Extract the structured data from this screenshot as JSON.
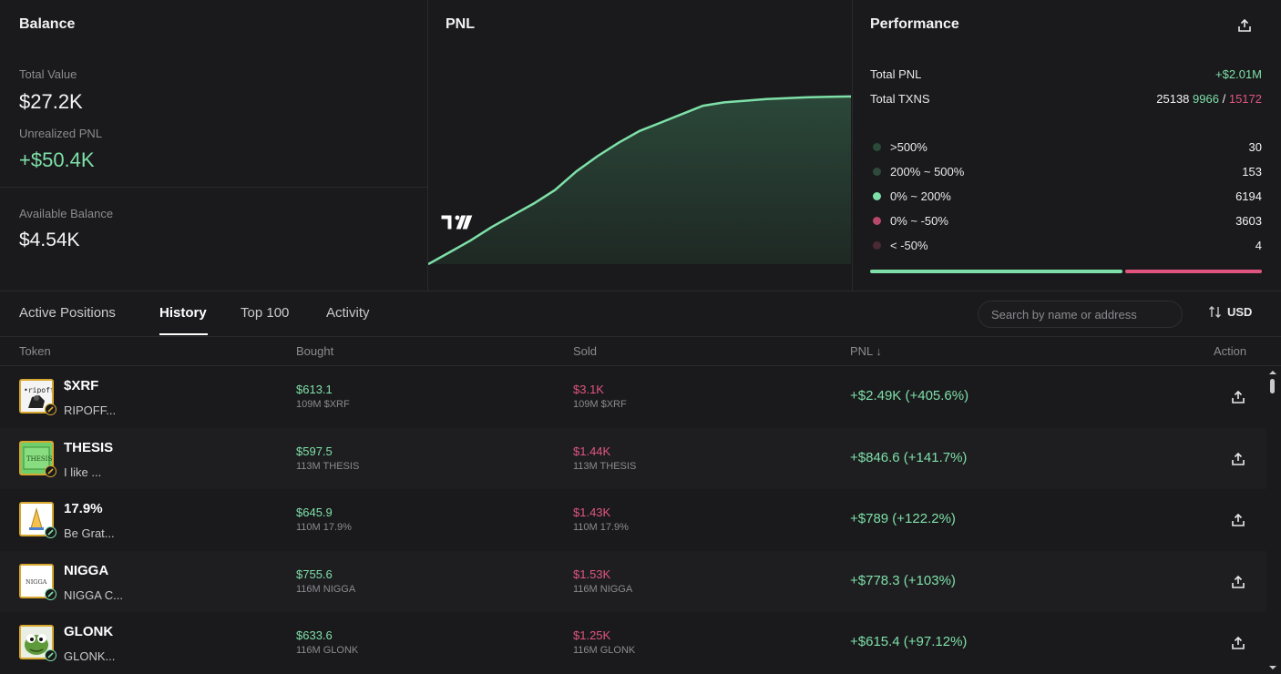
{
  "balance": {
    "title": "Balance",
    "total_value_label": "Total Value",
    "total_value": "$27.2K",
    "unrealized_label": "Unrealized PNL",
    "unrealized_value": "+$50.4K",
    "available_label": "Available Balance",
    "available_value": "$4.54K"
  },
  "pnl_panel": {
    "title": "PNL"
  },
  "chart_data": {
    "type": "area",
    "title": "PNL",
    "x": [
      0,
      1,
      2,
      3,
      4,
      5,
      6,
      7,
      8,
      9,
      10,
      11,
      12,
      13,
      14,
      15,
      16,
      17,
      18,
      19,
      20
    ],
    "values": [
      0.0,
      0.07,
      0.14,
      0.22,
      0.29,
      0.36,
      0.44,
      0.55,
      0.64,
      0.72,
      0.79,
      0.84,
      0.89,
      0.94,
      0.96,
      0.97,
      0.98,
      0.985,
      0.99,
      0.993,
      0.995
    ],
    "ylim": [
      0,
      1
    ],
    "grid": false,
    "color": "#7ee0a8"
  },
  "performance": {
    "title": "Performance",
    "total_pnl_label": "Total PNL",
    "total_pnl": "+$2.01M",
    "total_txns_label": "Total TXNS",
    "txns_total": "25138",
    "txns_win": "9966",
    "txns_sep": "/",
    "txns_loss": "15172",
    "buckets": [
      {
        "label": ">500%",
        "count": "30",
        "color": "#2b4a3a"
      },
      {
        "label": "200% ~ 500%",
        "count": "153",
        "color": "#2f4a3c"
      },
      {
        "label": "0% ~ 200%",
        "count": "6194",
        "color": "#7ee0a8"
      },
      {
        "label": "0% ~ -50%",
        "count": "3603",
        "color": "#b8486a"
      },
      {
        "label": "< -50%",
        "count": "4",
        "color": "#4a2a33"
      }
    ],
    "win_ratio": 0.644
  },
  "tabs": {
    "items": [
      "Active Positions",
      "History",
      "Top 100",
      "Activity"
    ],
    "active": "History",
    "search_placeholder": "Search by name or address",
    "currency": "USD"
  },
  "table": {
    "headers": {
      "token": "Token",
      "bought": "Bought",
      "sold": "Sold",
      "pnl": "PNL ↓",
      "action": "Action"
    },
    "rows": [
      {
        "symbol": "$XRF",
        "name": "RIPOFF...",
        "bought": "$613.1",
        "bought_sub": "109M $XRF",
        "sold": "$3.1K",
        "sold_sub": "109M $XRF",
        "pnl": "+$2.49K (+405.6%)",
        "badge": "gold",
        "img": "ripoff"
      },
      {
        "symbol": "THESIS",
        "name": "I like ...",
        "bought": "$597.5",
        "bought_sub": "113M THESIS",
        "sold": "$1.44K",
        "sold_sub": "113M THESIS",
        "pnl": "+$846.6 (+141.7%)",
        "badge": "gold",
        "img": "thesis"
      },
      {
        "symbol": "17.9%",
        "name": "Be Grat...",
        "bought": "$645.9",
        "bought_sub": "110M 17.9%",
        "sold": "$1.43K",
        "sold_sub": "110M 17.9%",
        "pnl": "+$789 (+122.2%)",
        "badge": "green",
        "img": "hands"
      },
      {
        "symbol": "NIGGA",
        "name": "NIGGA C...",
        "bought": "$755.6",
        "bought_sub": "116M NIGGA",
        "sold": "$1.53K",
        "sold_sub": "116M NIGGA",
        "pnl": "+$778.3 (+103%)",
        "badge": "green",
        "img": "nigga"
      },
      {
        "symbol": "GLONK",
        "name": "GLONK...",
        "bought": "$633.6",
        "bought_sub": "116M GLONK",
        "sold": "$1.25K",
        "sold_sub": "116M GLONK",
        "pnl": "+$615.4 (+97.12%)",
        "badge": "green",
        "img": "frog"
      }
    ]
  }
}
